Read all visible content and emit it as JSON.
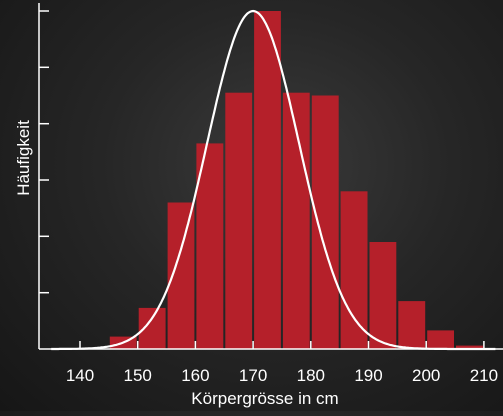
{
  "chart_data": {
    "type": "bar",
    "title": "",
    "xlabel": "Körpergrösse in cm",
    "ylabel": "Häufigkeit",
    "xlim": [
      135,
      212
    ],
    "ylim": [
      0,
      60
    ],
    "bin_width": 5,
    "x_ticks": [
      140,
      150,
      160,
      170,
      180,
      190,
      200,
      210
    ],
    "x_tick_labels": [
      "140",
      "150",
      "160",
      "170",
      "180",
      "190",
      "200",
      "210"
    ],
    "y_ticks": [
      10,
      20,
      30,
      40,
      50,
      60
    ],
    "y_tick_labels": [],
    "grid": false,
    "bins": [
      145,
      150,
      155,
      160,
      165,
      170,
      175,
      180,
      185,
      190,
      195,
      200,
      205
    ],
    "values": [
      2.2,
      7.3,
      26,
      36.5,
      45.5,
      60,
      45.5,
      45,
      28,
      19,
      8.5,
      3.3,
      0.6
    ],
    "bar_color": "#b5202a",
    "curve": {
      "type": "normal",
      "mean": 170,
      "sd": 8,
      "peak": 60,
      "color": "#ffffff"
    },
    "axis_color": "#ffffff"
  }
}
